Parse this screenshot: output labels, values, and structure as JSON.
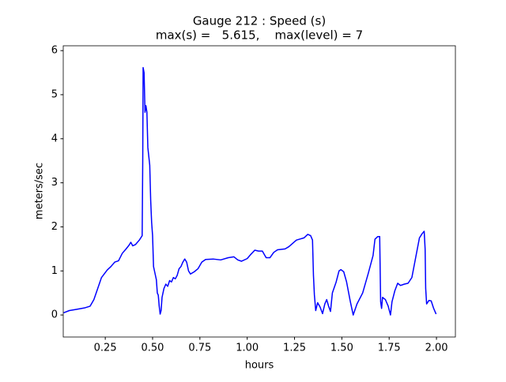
{
  "chart_data": {
    "type": "line",
    "title": "Gauge 212 : Speed (s)",
    "subtitle": "max(s) =   5.615,    max(level) = 7",
    "xlabel": "hours",
    "ylabel": "meters/sec",
    "xlim": [
      0.028,
      2.1
    ],
    "ylim": [
      -0.5,
      6.11
    ],
    "xticks": [
      {
        "value": 0.25,
        "label": "0.25"
      },
      {
        "value": 0.5,
        "label": "0.50"
      },
      {
        "value": 0.75,
        "label": "0.75"
      },
      {
        "value": 1,
        "label": "1.00"
      },
      {
        "value": 1.25,
        "label": "1.25"
      },
      {
        "value": 1.5,
        "label": "1.50"
      },
      {
        "value": 1.75,
        "label": "1.75"
      },
      {
        "value": 2,
        "label": "2.00"
      }
    ],
    "yticks": [
      0,
      1,
      2,
      3,
      4,
      5,
      6
    ],
    "grid": false,
    "series": [
      {
        "color": "#0000ff",
        "x": [
          0.03,
          0.06,
          0.1,
          0.14,
          0.17,
          0.19,
          0.21,
          0.23,
          0.26,
          0.28,
          0.3,
          0.32,
          0.34,
          0.36,
          0.375,
          0.385,
          0.395,
          0.41,
          0.43,
          0.445,
          0.448,
          0.45,
          0.455,
          0.46,
          0.465,
          0.47,
          0.475,
          0.48,
          0.485,
          0.49,
          0.495,
          0.5,
          0.505,
          0.51,
          0.515,
          0.52,
          0.525,
          0.53,
          0.535,
          0.54,
          0.545,
          0.55,
          0.56,
          0.57,
          0.58,
          0.59,
          0.6,
          0.61,
          0.62,
          0.63,
          0.64,
          0.65,
          0.66,
          0.67,
          0.68,
          0.69,
          0.7,
          0.72,
          0.74,
          0.76,
          0.78,
          0.82,
          0.86,
          0.9,
          0.93,
          0.95,
          0.97,
          1.0,
          1.02,
          1.04,
          1.06,
          1.08,
          1.1,
          1.12,
          1.14,
          1.16,
          1.2,
          1.22,
          1.26,
          1.3,
          1.32,
          1.335,
          1.345,
          1.35,
          1.355,
          1.362,
          1.372,
          1.385,
          1.398,
          1.41,
          1.42,
          1.43,
          1.44,
          1.45,
          1.47,
          1.485,
          1.495,
          1.51,
          1.525,
          1.545,
          1.56,
          1.58,
          1.61,
          1.64,
          1.665,
          1.675,
          1.69,
          1.7,
          1.705,
          1.71,
          1.715,
          1.73,
          1.745,
          1.757,
          1.765,
          1.78,
          1.795,
          1.81,
          1.83,
          1.85,
          1.87,
          1.89,
          1.91,
          1.925,
          1.935,
          1.94,
          1.943,
          1.948,
          1.96,
          1.972,
          1.985,
          1.998
        ],
        "values": [
          0.05,
          0.1,
          0.13,
          0.16,
          0.2,
          0.35,
          0.6,
          0.85,
          1.02,
          1.1,
          1.2,
          1.23,
          1.4,
          1.5,
          1.58,
          1.65,
          1.57,
          1.6,
          1.7,
          1.8,
          3.5,
          5.615,
          5.5,
          4.6,
          4.75,
          4.6,
          3.8,
          3.6,
          3.4,
          2.6,
          2.1,
          1.8,
          1.1,
          1.0,
          0.9,
          0.8,
          0.5,
          0.45,
          0.2,
          0.02,
          0.1,
          0.4,
          0.6,
          0.7,
          0.65,
          0.78,
          0.75,
          0.85,
          0.82,
          0.9,
          1.05,
          1.1,
          1.2,
          1.27,
          1.2,
          1.0,
          0.93,
          0.98,
          1.05,
          1.2,
          1.26,
          1.27,
          1.25,
          1.3,
          1.32,
          1.25,
          1.22,
          1.28,
          1.38,
          1.47,
          1.45,
          1.45,
          1.3,
          1.3,
          1.42,
          1.48,
          1.5,
          1.55,
          1.7,
          1.75,
          1.83,
          1.8,
          1.7,
          0.9,
          0.45,
          0.1,
          0.28,
          0.18,
          0.03,
          0.25,
          0.35,
          0.2,
          0.08,
          0.5,
          0.75,
          1.0,
          1.03,
          0.98,
          0.75,
          0.3,
          0.0,
          0.25,
          0.5,
          0.95,
          1.35,
          1.72,
          1.78,
          1.78,
          0.3,
          0.15,
          0.4,
          0.35,
          0.2,
          0.0,
          0.3,
          0.55,
          0.72,
          0.67,
          0.7,
          0.72,
          0.85,
          1.3,
          1.75,
          1.85,
          1.9,
          1.5,
          0.6,
          0.25,
          0.33,
          0.32,
          0.15,
          0.02
        ]
      }
    ]
  }
}
